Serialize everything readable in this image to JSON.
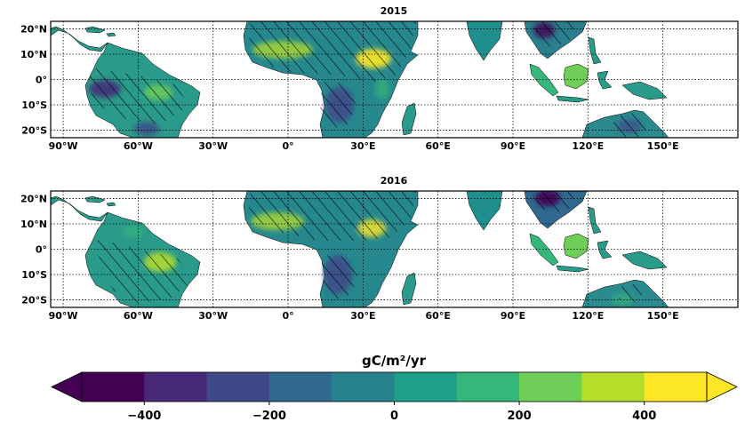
{
  "panels": [
    {
      "title": "2015"
    },
    {
      "title": "2016"
    }
  ],
  "lon_ticks": [
    {
      "lon": -90,
      "label": "90°W"
    },
    {
      "lon": -60,
      "label": "60°W"
    },
    {
      "lon": -30,
      "label": "30°W"
    },
    {
      "lon": 0,
      "label": "0°"
    },
    {
      "lon": 30,
      "label": "30°E"
    },
    {
      "lon": 60,
      "label": "60°E"
    },
    {
      "lon": 90,
      "label": "90°E"
    },
    {
      "lon": 120,
      "label": "120°E"
    },
    {
      "lon": 150,
      "label": "150°E"
    }
  ],
  "lat_ticks": [
    {
      "lat": 20,
      "label": "20°N"
    },
    {
      "lat": 10,
      "label": "10°N"
    },
    {
      "lat": 0,
      "label": "0°"
    },
    {
      "lat": -10,
      "label": "10°S"
    },
    {
      "lat": -20,
      "label": "20°S"
    }
  ],
  "extent": {
    "lon_min": -95,
    "lon_max": 180,
    "lat_min": -23,
    "lat_max": 23
  },
  "colorbar": {
    "title": "gC/m²/yr",
    "vmin": -500,
    "vmax": 500,
    "step": 100,
    "extend": "both",
    "colors": [
      "#440154",
      "#482878",
      "#3e4989",
      "#31688e",
      "#26828e",
      "#1f9e89",
      "#35b779",
      "#6ece58",
      "#b5de2b",
      "#fde725"
    ],
    "ticks": [
      {
        "value": -400,
        "label": "−400"
      },
      {
        "value": -200,
        "label": "−200"
      },
      {
        "value": 0,
        "label": "0"
      },
      {
        "value": 200,
        "label": "200"
      },
      {
        "value": 400,
        "label": "400"
      }
    ]
  },
  "colors": {
    "ocean": "#ffffff",
    "coast": "#000000",
    "grid": "#000000"
  }
}
